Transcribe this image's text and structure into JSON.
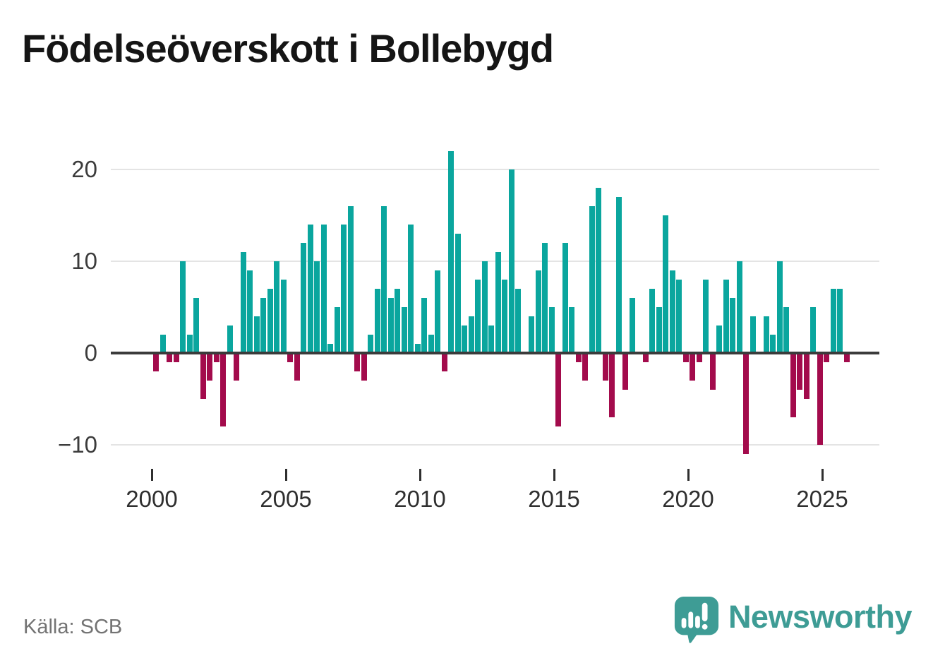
{
  "title": "Födelseöverskott i Bollebygd",
  "source": "Källa: SCB",
  "brand": {
    "name": "Newsworthy",
    "color": "#3e9c95"
  },
  "colors": {
    "positive_bar": "#0aa69e",
    "negative_bar": "#a30b4c",
    "zero_line": "#3b3b3b",
    "gridline": "#e4e4e4",
    "axis_text": "#3c3c3c",
    "source_text": "#737373"
  },
  "chart_data": {
    "type": "bar",
    "title": "Födelseöverskott i Bollebygd",
    "frequency": "quarterly",
    "start": "2000Q1",
    "end": "2025Q4",
    "x_tick_labels": [
      "2000",
      "2005",
      "2010",
      "2015",
      "2020",
      "2025"
    ],
    "x_tick_years": [
      2000,
      2005,
      2010,
      2015,
      2020,
      2025
    ],
    "y_tick_labels": [
      "20",
      "10",
      "0",
      "−10"
    ],
    "y_ticks": [
      20,
      10,
      0,
      -10
    ],
    "ylim": [
      -12,
      23
    ],
    "grid": "horizontal",
    "legend": "none",
    "positive_color_meaning": "birth surplus",
    "negative_color_meaning": "birth deficit",
    "values": [
      -2,
      2,
      -1,
      -1,
      10,
      2,
      6,
      -5,
      -3,
      -1,
      -8,
      3,
      -3,
      11,
      9,
      4,
      6,
      7,
      10,
      8,
      -1,
      -3,
      12,
      14,
      10,
      14,
      1,
      5,
      14,
      16,
      -2,
      -3,
      2,
      7,
      16,
      6,
      7,
      5,
      14,
      1,
      6,
      2,
      9,
      -2,
      22,
      13,
      3,
      4,
      8,
      10,
      3,
      11,
      8,
      20,
      7,
      0,
      4,
      9,
      12,
      5,
      -8,
      12,
      5,
      -1,
      -3,
      16,
      18,
      -3,
      -7,
      17,
      -4,
      6,
      0,
      -1,
      7,
      5,
      15,
      9,
      8,
      -1,
      -3,
      -1,
      8,
      -4,
      3,
      8,
      6,
      10,
      -11,
      4,
      0,
      4,
      2,
      10,
      5,
      -7,
      -4,
      -5,
      5,
      -10,
      -1,
      7,
      7,
      -1
    ]
  }
}
